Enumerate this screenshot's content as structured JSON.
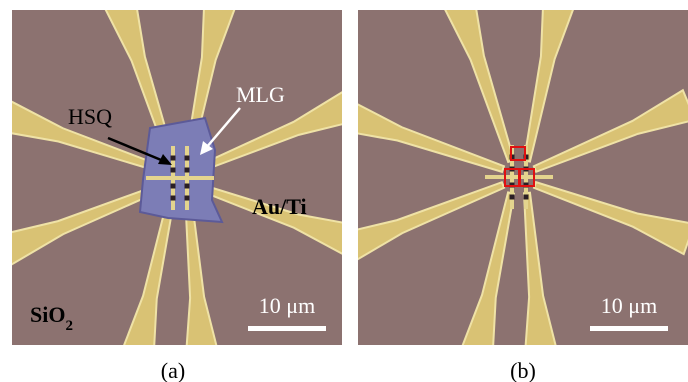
{
  "panels": [
    {
      "labels": {
        "hsq": "HSQ",
        "mlg": "MLG",
        "metal": "Au/Ti",
        "substrate": "SiO",
        "substrate_subscript": "2"
      },
      "scale_bar": "10 μm",
      "caption": "(a)"
    },
    {
      "scale_bar": "10 μm",
      "caption": "(b)"
    }
  ]
}
